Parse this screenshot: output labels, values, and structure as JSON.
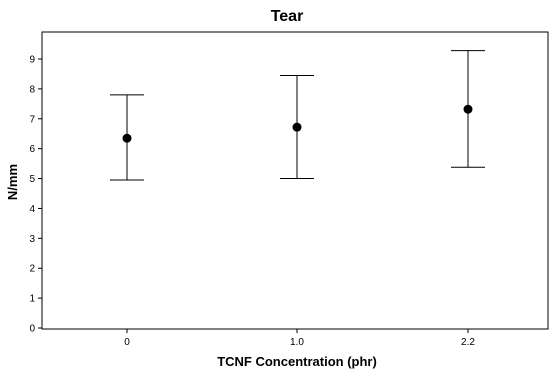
{
  "chart_data": {
    "type": "scatter",
    "title": "Tear",
    "xlabel": "TCNF Concentration (phr)",
    "ylabel": "N/mm",
    "categories": [
      "0",
      "1.0",
      "2.2"
    ],
    "ylim": [
      0,
      9.6
    ],
    "yticks": [
      0,
      1,
      2,
      3,
      4,
      5,
      6,
      7,
      8,
      9
    ],
    "series": [
      {
        "values": [
          6.35,
          6.72,
          7.32
        ],
        "lower": [
          4.95,
          5.0,
          5.38
        ],
        "upper": [
          7.8,
          8.45,
          9.28
        ]
      }
    ],
    "grid": false,
    "legend": "none",
    "colors": {
      "marker": "#000000",
      "axis": "#000000",
      "frame": "#000000"
    }
  }
}
